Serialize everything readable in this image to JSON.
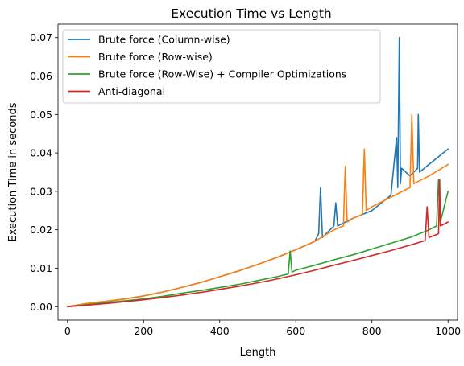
{
  "chart_data": {
    "type": "line",
    "title": "Execution Time vs Length",
    "xlabel": "Length",
    "ylabel": "Execution Time in seconds",
    "xlim": [
      -25,
      1025
    ],
    "ylim": [
      -0.0035,
      0.0735
    ],
    "xticks": [
      0,
      200,
      400,
      600,
      800,
      1000
    ],
    "yticks": [
      0.0,
      0.01,
      0.02,
      0.03,
      0.04,
      0.05,
      0.06,
      0.07
    ],
    "xtick_labels": [
      "0",
      "200",
      "400",
      "600",
      "800",
      "1000"
    ],
    "ytick_labels": [
      "0.00",
      "0.01",
      "0.02",
      "0.03",
      "0.04",
      "0.05",
      "0.06",
      "0.07"
    ],
    "grid": false,
    "legend_position": "upper-left",
    "series": [
      {
        "name": "Brute force (Column-wise)",
        "color": "#1f77b4",
        "x": [
          0,
          50,
          100,
          150,
          200,
          250,
          300,
          350,
          400,
          450,
          500,
          550,
          600,
          650,
          660,
          665,
          670,
          700,
          705,
          710,
          750,
          800,
          850,
          865,
          868,
          872,
          875,
          878,
          900,
          920,
          922,
          925,
          950,
          1000
        ],
        "y": [
          0,
          0.0008,
          0.0013,
          0.002,
          0.0028,
          0.0038,
          0.005,
          0.0063,
          0.0078,
          0.0093,
          0.011,
          0.0128,
          0.0148,
          0.017,
          0.019,
          0.031,
          0.018,
          0.021,
          0.027,
          0.021,
          0.023,
          0.025,
          0.029,
          0.044,
          0.031,
          0.07,
          0.032,
          0.036,
          0.034,
          0.036,
          0.05,
          0.035,
          0.037,
          0.041
        ]
      },
      {
        "name": "Brute force (Row-wise)",
        "color": "#ff7f0e",
        "x": [
          0,
          50,
          100,
          150,
          200,
          250,
          300,
          350,
          400,
          450,
          500,
          550,
          600,
          650,
          700,
          725,
          730,
          735,
          750,
          775,
          780,
          785,
          800,
          850,
          900,
          905,
          910,
          950,
          1000
        ],
        "y": [
          0,
          0.0008,
          0.0014,
          0.002,
          0.0028,
          0.0038,
          0.005,
          0.0063,
          0.0078,
          0.0093,
          0.011,
          0.0128,
          0.0148,
          0.017,
          0.02,
          0.021,
          0.0365,
          0.022,
          0.023,
          0.024,
          0.041,
          0.025,
          0.026,
          0.0285,
          0.031,
          0.05,
          0.032,
          0.034,
          0.037
        ]
      },
      {
        "name": "Brute force (Row-Wise) + Compiler Optimizations",
        "color": "#2ca02c",
        "x": [
          0,
          50,
          100,
          150,
          200,
          250,
          300,
          350,
          400,
          450,
          500,
          550,
          580,
          585,
          590,
          600,
          650,
          700,
          750,
          800,
          850,
          900,
          950,
          970,
          975,
          980,
          1000
        ],
        "y": [
          0,
          0.0005,
          0.001,
          0.0015,
          0.002,
          0.0027,
          0.0035,
          0.0042,
          0.005,
          0.0058,
          0.0068,
          0.0078,
          0.0085,
          0.0145,
          0.009,
          0.0095,
          0.0108,
          0.0122,
          0.0135,
          0.015,
          0.0165,
          0.018,
          0.02,
          0.021,
          0.033,
          0.022,
          0.03
        ]
      },
      {
        "name": "Anti-diagonal",
        "color": "#d62728",
        "x": [
          0,
          50,
          100,
          150,
          200,
          250,
          300,
          350,
          400,
          450,
          500,
          550,
          600,
          650,
          700,
          750,
          800,
          850,
          900,
          940,
          945,
          950,
          975,
          978,
          980,
          1000
        ],
        "y": [
          0,
          0.0004,
          0.0008,
          0.0013,
          0.0018,
          0.0024,
          0.003,
          0.0037,
          0.0045,
          0.0053,
          0.0062,
          0.0072,
          0.0083,
          0.0095,
          0.0108,
          0.012,
          0.0133,
          0.0146,
          0.016,
          0.0172,
          0.026,
          0.018,
          0.019,
          0.033,
          0.021,
          0.022
        ]
      }
    ]
  }
}
